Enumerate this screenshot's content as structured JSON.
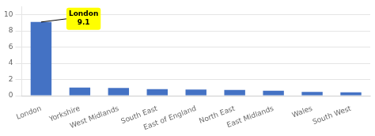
{
  "chart_data": {
    "type": "bar",
    "categories": [
      "London",
      "Yorkshire",
      "West Midlands",
      "South East",
      "East of England",
      "North East",
      "East Midlands",
      "Wales",
      "South West"
    ],
    "values": [
      9.1,
      1.0,
      0.95,
      0.8,
      0.75,
      0.72,
      0.62,
      0.47,
      0.42
    ],
    "color": "#4472C4",
    "ylim": [
      0,
      11
    ],
    "yticks": [
      0,
      2,
      4,
      6,
      8,
      10
    ],
    "grid": true,
    "annotations": [
      {
        "text": "London\n9.1",
        "x": "London",
        "y": 9.1,
        "color": "#ffff00"
      }
    ]
  }
}
